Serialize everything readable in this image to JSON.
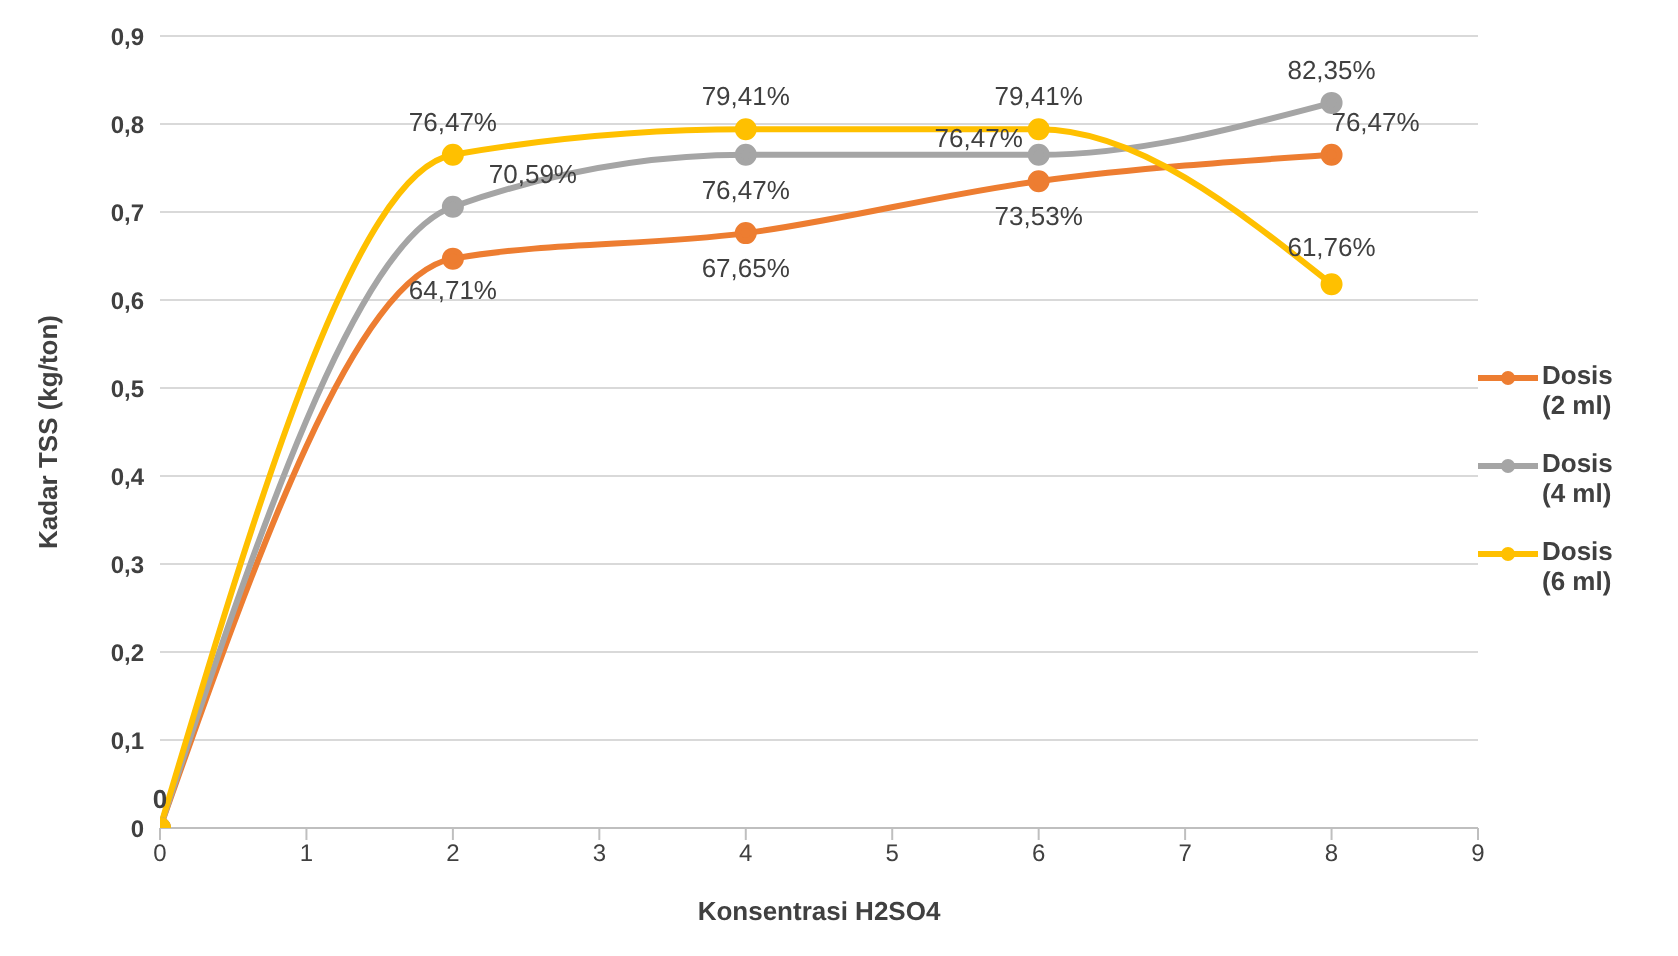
{
  "chart_data": {
    "type": "line",
    "xlabel": "Konsentrasi H2SO4",
    "ylabel": "Kadar TSS (kg/ton)",
    "x": [
      0,
      2,
      4,
      6,
      8
    ],
    "series": [
      {
        "name": "Dosis (2 ml)",
        "color": "#ed7d31",
        "values": [
          0,
          0.647,
          0.676,
          0.735,
          0.765
        ]
      },
      {
        "name": "Dosis (4 ml)",
        "color": "#a5a5a5",
        "values": [
          0,
          0.706,
          0.765,
          0.765,
          0.824
        ]
      },
      {
        "name": "Dosis (6 ml)",
        "color": "#ffc000",
        "values": [
          0,
          0.765,
          0.794,
          0.794,
          0.618
        ]
      }
    ],
    "annotations": [
      {
        "text": "0",
        "x": 0,
        "y": 0
      },
      {
        "text": "64,71%",
        "x": 2,
        "y": 0.647
      },
      {
        "text": "67,65%",
        "x": 4,
        "y": 0.676
      },
      {
        "text": "73,53%",
        "x": 6,
        "y": 0.735
      },
      {
        "text": "76,47%",
        "x": 8,
        "y": 0.765
      },
      {
        "text": "70,59%",
        "x": 2,
        "y": 0.706
      },
      {
        "text": "76,47%",
        "x": 4,
        "y": 0.765
      },
      {
        "text": "76,47%",
        "x": 6,
        "y": 0.765
      },
      {
        "text": "82,35%",
        "x": 8,
        "y": 0.824
      },
      {
        "text": "76,47%",
        "x": 2,
        "y": 0.765
      },
      {
        "text": "79,41%",
        "x": 4,
        "y": 0.794
      },
      {
        "text": "79,41%",
        "x": 6,
        "y": 0.794
      },
      {
        "text": "61,76%",
        "x": 8,
        "y": 0.618
      }
    ],
    "xlim": [
      0,
      9
    ],
    "xticks": [
      0,
      1,
      2,
      3,
      4,
      5,
      6,
      7,
      8,
      9
    ],
    "ylim": [
      0,
      0.9
    ],
    "yticks": [
      {
        "value": 0,
        "label": "0"
      },
      {
        "value": 0.1,
        "label": "0,1"
      },
      {
        "value": 0.2,
        "label": "0,2"
      },
      {
        "value": 0.3,
        "label": "0,3"
      },
      {
        "value": 0.4,
        "label": "0,4"
      },
      {
        "value": 0.5,
        "label": "0,5"
      },
      {
        "value": 0.6,
        "label": "0,6"
      },
      {
        "value": 0.7,
        "label": "0,7"
      },
      {
        "value": 0.8,
        "label": "0,8"
      },
      {
        "value": 0.9,
        "label": "0,9"
      }
    ],
    "grid": "y",
    "legend": "right",
    "marker": "circle",
    "line_style": "solid"
  }
}
